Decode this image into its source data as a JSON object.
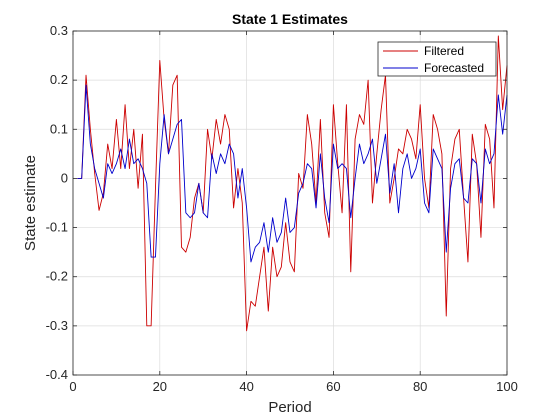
{
  "chart_data": {
    "type": "line",
    "title": "State 1 Estimates",
    "xlabel": "Period",
    "ylabel": "State estimate",
    "xlim": [
      0,
      100
    ],
    "ylim": [
      -0.4,
      0.3
    ],
    "xticks": [
      "0",
      "20",
      "40",
      "60",
      "80",
      "100"
    ],
    "yticks": [
      "-0.4",
      "-0.3",
      "-0.2",
      "-0.1",
      "0",
      "0.1",
      "0.2",
      "0.3"
    ],
    "xtick_values": [
      0,
      20,
      40,
      60,
      80,
      100
    ],
    "ytick_values": [
      -0.4,
      -0.3,
      -0.2,
      -0.1,
      0,
      0.1,
      0.2,
      0.3
    ],
    "grid": true,
    "legend_position": "top-right",
    "x": [
      1,
      2,
      3,
      4,
      5,
      6,
      7,
      8,
      9,
      10,
      11,
      12,
      13,
      14,
      15,
      16,
      17,
      18,
      19,
      20,
      21,
      22,
      23,
      24,
      25,
      26,
      27,
      28,
      29,
      30,
      31,
      32,
      33,
      34,
      35,
      36,
      37,
      38,
      39,
      40,
      41,
      42,
      43,
      44,
      45,
      46,
      47,
      48,
      49,
      50,
      51,
      52,
      53,
      54,
      55,
      56,
      57,
      58,
      59,
      60,
      61,
      62,
      63,
      64,
      65,
      66,
      67,
      68,
      69,
      70,
      71,
      72,
      73,
      74,
      75,
      76,
      77,
      78,
      79,
      80,
      81,
      82,
      83,
      84,
      85,
      86,
      87,
      88,
      89,
      90,
      91,
      92,
      93,
      94,
      95,
      96,
      97,
      98,
      99,
      100
    ],
    "series": [
      {
        "name": "Filtered",
        "color": "#cc0000",
        "values": [
          0,
          0,
          0.21,
          0.1,
          0.01,
          -0.065,
          -0.03,
          0.07,
          0.02,
          0.12,
          0.02,
          0.15,
          0.02,
          0.1,
          -0.02,
          0.09,
          -0.3,
          -0.3,
          -0.02,
          0.24,
          0.12,
          0.05,
          0.19,
          0.21,
          -0.14,
          -0.15,
          -0.12,
          -0.04,
          -0.01,
          -0.07,
          0.1,
          0.04,
          0.12,
          0.07,
          0.13,
          0.1,
          -0.06,
          0.02,
          -0.05,
          -0.31,
          -0.25,
          -0.26,
          -0.2,
          -0.14,
          -0.27,
          -0.14,
          -0.2,
          -0.18,
          -0.09,
          -0.17,
          -0.19,
          0.01,
          -0.02,
          0.13,
          0.07,
          -0.05,
          0.12,
          -0.07,
          -0.12,
          0.15,
          0.03,
          -0.07,
          0.15,
          -0.19,
          0.08,
          0.13,
          0.11,
          0.2,
          -0.05,
          0.05,
          0.14,
          0.21,
          -0.05,
          0,
          0.06,
          0.05,
          0.1,
          0.08,
          0.04,
          0.15,
          0.0,
          -0.06,
          0.13,
          0.1,
          0.05,
          -0.28,
          0.02,
          0.08,
          0.1,
          -0.04,
          -0.17,
          0.09,
          0.03,
          -0.12,
          0.11,
          0.08,
          -0.06,
          0.29,
          0.14,
          0.23
        ]
      },
      {
        "name": "Forecasted",
        "color": "#0000cc",
        "values": [
          0,
          0,
          0.19,
          0.07,
          0.02,
          -0.01,
          -0.04,
          0.03,
          0.01,
          0.03,
          0.06,
          0.02,
          0.08,
          0.03,
          0.04,
          0.02,
          -0.01,
          -0.16,
          -0.16,
          0.03,
          0.13,
          0.05,
          0.08,
          0.11,
          0.12,
          -0.07,
          -0.08,
          -0.07,
          -0.01,
          -0.07,
          -0.08,
          0.05,
          0.01,
          0.05,
          0.03,
          0.07,
          0.05,
          -0.04,
          0.02,
          -0.06,
          -0.17,
          -0.14,
          -0.13,
          -0.09,
          -0.15,
          -0.08,
          -0.13,
          -0.11,
          -0.04,
          -0.11,
          -0.1,
          -0.03,
          -0.01,
          0.03,
          0.02,
          -0.06,
          0.05,
          -0.04,
          -0.09,
          0.07,
          0.02,
          0.03,
          0.02,
          -0.08,
          0.0,
          0.07,
          0.03,
          0.05,
          0.08,
          -0.01,
          0.04,
          0.09,
          -0.03,
          0.03,
          -0.07,
          0.02,
          0.05,
          0.0,
          0.02,
          0.06,
          -0.05,
          -0.07,
          0.06,
          0.04,
          0.02,
          -0.15,
          -0.02,
          0.03,
          0.04,
          -0.04,
          -0.05,
          0.04,
          0.03,
          -0.05,
          0.06,
          0.03,
          0.05,
          0.17,
          0.09,
          0.17
        ]
      }
    ]
  }
}
